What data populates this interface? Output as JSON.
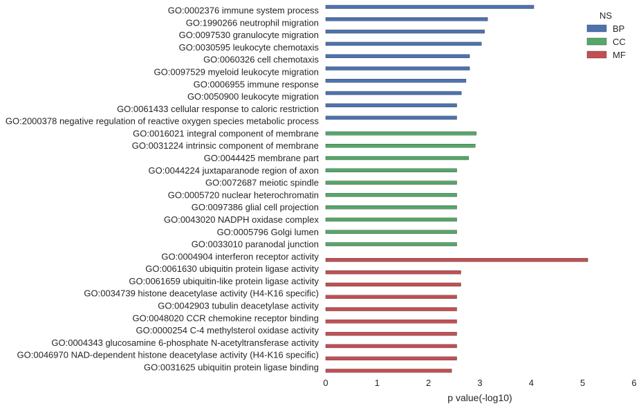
{
  "chart_data": {
    "type": "bar",
    "orientation": "horizontal",
    "xlabel": "p value(-log10)",
    "xlim": [
      0,
      6
    ],
    "xticks": [
      "0",
      "1",
      "2",
      "3",
      "4",
      "5",
      "6"
    ],
    "grid": false,
    "legend": {
      "title": "NS",
      "placement": "top-right",
      "entries": [
        {
          "name": "BP",
          "color": "#4c72b0"
        },
        {
          "name": "CC",
          "color": "#55a868"
        },
        {
          "name": "MF",
          "color": "#c44e52"
        }
      ]
    },
    "categories": [
      {
        "label": "GO:0002376 immune system process",
        "value": 4.05,
        "ns": "BP"
      },
      {
        "label": "GO:1990266 neutrophil migration",
        "value": 3.15,
        "ns": "BP"
      },
      {
        "label": "GO:0097530 granulocyte migration",
        "value": 3.09,
        "ns": "BP"
      },
      {
        "label": "GO:0030595 leukocyte chemotaxis",
        "value": 3.03,
        "ns": "BP"
      },
      {
        "label": "GO:0060326 cell chemotaxis",
        "value": 2.8,
        "ns": "BP"
      },
      {
        "label": "GO:0097529 myeloid leukocyte migration",
        "value": 2.8,
        "ns": "BP"
      },
      {
        "label": "GO:0006955 immune response",
        "value": 2.73,
        "ns": "BP"
      },
      {
        "label": "GO:0050900 leukocyte migration",
        "value": 2.64,
        "ns": "BP"
      },
      {
        "label": "GO:0061433 cellular response to caloric restriction",
        "value": 2.55,
        "ns": "BP"
      },
      {
        "label": "GO:2000378 negative regulation of reactive oxygen species metabolic process",
        "value": 2.55,
        "ns": "BP"
      },
      {
        "label": "GO:0016021 integral component of membrane",
        "value": 2.93,
        "ns": "CC"
      },
      {
        "label": "GO:0031224 intrinsic component of membrane",
        "value": 2.91,
        "ns": "CC"
      },
      {
        "label": "GO:0044425 membrane part",
        "value": 2.78,
        "ns": "CC"
      },
      {
        "label": "GO:0044224 juxtaparanode region of axon",
        "value": 2.55,
        "ns": "CC"
      },
      {
        "label": "GO:0072687 meiotic spindle",
        "value": 2.55,
        "ns": "CC"
      },
      {
        "label": "GO:0005720 nuclear heterochromatin",
        "value": 2.55,
        "ns": "CC"
      },
      {
        "label": "GO:0097386 glial cell projection",
        "value": 2.55,
        "ns": "CC"
      },
      {
        "label": "GO:0043020 NADPH oxidase complex",
        "value": 2.55,
        "ns": "CC"
      },
      {
        "label": "GO:0005796 Golgi lumen",
        "value": 2.55,
        "ns": "CC"
      },
      {
        "label": "GO:0033010 paranodal junction",
        "value": 2.55,
        "ns": "CC"
      },
      {
        "label": "GO:0004904 interferon receptor activity",
        "value": 5.1,
        "ns": "MF"
      },
      {
        "label": "GO:0061630 ubiquitin protein ligase activity",
        "value": 2.63,
        "ns": "MF"
      },
      {
        "label": "GO:0061659 ubiquitin-like protein ligase activity",
        "value": 2.63,
        "ns": "MF"
      },
      {
        "label": "GO:0034739 histone deacetylase activity (H4-K16 specific)",
        "value": 2.55,
        "ns": "MF"
      },
      {
        "label": "GO:0042903 tubulin deacetylase activity",
        "value": 2.55,
        "ns": "MF"
      },
      {
        "label": "GO:0048020 CCR chemokine receptor binding",
        "value": 2.55,
        "ns": "MF"
      },
      {
        "label": "GO:0000254 C-4 methylsterol oxidase activity",
        "value": 2.55,
        "ns": "MF"
      },
      {
        "label": "GO:0004343 glucosamine 6-phosphate N-acetyltransferase activity",
        "value": 2.55,
        "ns": "MF"
      },
      {
        "label": "GO:0046970 NAD-dependent histone deacetylase activity (H4-K16 specific)",
        "value": 2.55,
        "ns": "MF"
      },
      {
        "label": "GO:0031625 ubiquitin protein ligase binding",
        "value": 2.45,
        "ns": "MF"
      }
    ]
  }
}
